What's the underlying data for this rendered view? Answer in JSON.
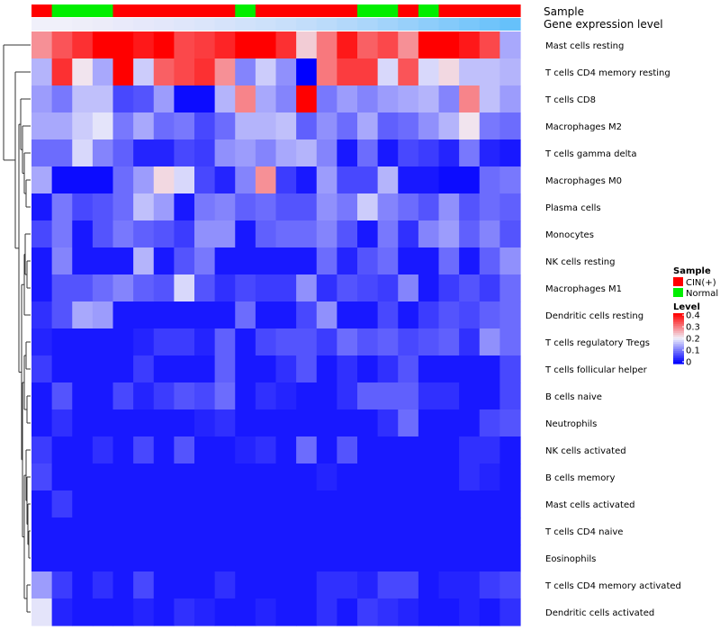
{
  "chart_data": {
    "type": "heatmap",
    "annotation_titles": [
      "Sample",
      "Gene expression level"
    ],
    "sample_groups": [
      "CIN(+)",
      "Normal",
      "Normal",
      "Normal",
      "CIN(+)",
      "CIN(+)",
      "CIN(+)",
      "CIN(+)",
      "CIN(+)",
      "CIN(+)",
      "Normal",
      "CIN(+)",
      "CIN(+)",
      "CIN(+)",
      "CIN(+)",
      "CIN(+)",
      "Normal",
      "Normal",
      "CIN(+)",
      "Normal",
      "CIN(+)",
      "CIN(+)",
      "CIN(+)",
      "CIN(+)"
    ],
    "expression_level_colors": [
      "#f0f0fa",
      "#f0f0fa",
      "#eeeef9",
      "#ececf9",
      "#e9eafa",
      "#e6e8fa",
      "#e3e7fa",
      "#dfe6fa",
      "#dbe5fa",
      "#d6e3fa",
      "#d1e2fa",
      "#cde1fa",
      "#c8dffa",
      "#c2ddfa",
      "#bbdbfa",
      "#b3d8fa",
      "#abd6fa",
      "#a2d3fa",
      "#98d0fa",
      "#8ecdfa",
      "#84cafa",
      "#7ac7fa",
      "#70c4fa",
      "#66c1fa"
    ],
    "rows": [
      "Mast cells resting",
      "T cells CD4 memory resting",
      "T cells CD8",
      "Macrophages M2",
      "T cells gamma delta",
      "Macrophages M0",
      "Plasma cells",
      "Monocytes",
      "NK cells resting",
      "Macrophages M1",
      "Dendritic cells resting",
      "T cells regulatory  Tregs",
      "T cells follicular helper",
      "B cells naive",
      "Neutrophils",
      "NK cells activated",
      "B cells memory",
      "Mast cells activated",
      "T cells CD4 naive",
      "Eosinophils",
      "T cells CD4 memory activated",
      "Dendritic cells activated"
    ],
    "values": [
      [
        0.28,
        0.33,
        0.36,
        0.4,
        0.4,
        0.38,
        0.4,
        0.34,
        0.35,
        0.37,
        0.4,
        0.4,
        0.36,
        0.23,
        0.3,
        0.38,
        0.32,
        0.34,
        0.28,
        0.4,
        0.4,
        0.38,
        0.34,
        0.14
      ],
      [
        0.15,
        0.36,
        0.21,
        0.14,
        0.4,
        0.17,
        0.32,
        0.34,
        0.36,
        0.28,
        0.11,
        0.17,
        0.12,
        0.0,
        0.3,
        0.35,
        0.35,
        0.18,
        0.33,
        0.18,
        0.22,
        0.16,
        0.16,
        0.15
      ],
      [
        0.13,
        0.1,
        0.16,
        0.16,
        0.06,
        0.07,
        0.13,
        0.01,
        0.01,
        0.15,
        0.29,
        0.14,
        0.11,
        0.4,
        0.1,
        0.13,
        0.11,
        0.13,
        0.14,
        0.15,
        0.11,
        0.29,
        0.16,
        0.13
      ],
      [
        0.14,
        0.14,
        0.17,
        0.19,
        0.1,
        0.14,
        0.09,
        0.1,
        0.06,
        0.09,
        0.15,
        0.15,
        0.16,
        0.08,
        0.12,
        0.09,
        0.14,
        0.08,
        0.09,
        0.12,
        0.15,
        0.21,
        0.1,
        0.09
      ],
      [
        0.09,
        0.09,
        0.18,
        0.11,
        0.08,
        0.03,
        0.03,
        0.06,
        0.05,
        0.12,
        0.13,
        0.11,
        0.14,
        0.15,
        0.11,
        0.02,
        0.09,
        0.02,
        0.06,
        0.05,
        0.03,
        0.1,
        0.03,
        0.02
      ],
      [
        0.14,
        0.01,
        0.01,
        0.01,
        0.09,
        0.13,
        0.22,
        0.18,
        0.06,
        0.03,
        0.11,
        0.28,
        0.05,
        0.02,
        0.13,
        0.06,
        0.06,
        0.15,
        0.02,
        0.02,
        0.01,
        0.01,
        0.09,
        0.1
      ],
      [
        0.02,
        0.1,
        0.06,
        0.07,
        0.09,
        0.16,
        0.13,
        0.02,
        0.1,
        0.11,
        0.08,
        0.09,
        0.07,
        0.07,
        0.12,
        0.1,
        0.17,
        0.11,
        0.09,
        0.07,
        0.12,
        0.07,
        0.09,
        0.08
      ],
      [
        0.06,
        0.1,
        0.02,
        0.07,
        0.1,
        0.08,
        0.07,
        0.05,
        0.12,
        0.12,
        0.02,
        0.08,
        0.09,
        0.09,
        0.11,
        0.07,
        0.02,
        0.1,
        0.04,
        0.11,
        0.13,
        0.08,
        0.11,
        0.07
      ],
      [
        0.02,
        0.11,
        0.02,
        0.02,
        0.02,
        0.15,
        0.02,
        0.07,
        0.1,
        0.02,
        0.02,
        0.02,
        0.02,
        0.02,
        0.09,
        0.03,
        0.07,
        0.09,
        0.02,
        0.02,
        0.09,
        0.02,
        0.08,
        0.12
      ],
      [
        0.02,
        0.07,
        0.07,
        0.09,
        0.11,
        0.08,
        0.07,
        0.18,
        0.07,
        0.04,
        0.06,
        0.05,
        0.05,
        0.12,
        0.04,
        0.07,
        0.06,
        0.05,
        0.11,
        0.02,
        0.05,
        0.07,
        0.05,
        0.09
      ],
      [
        0.04,
        0.07,
        0.14,
        0.13,
        0.02,
        0.02,
        0.02,
        0.02,
        0.02,
        0.02,
        0.09,
        0.02,
        0.02,
        0.06,
        0.12,
        0.02,
        0.02,
        0.06,
        0.02,
        0.05,
        0.07,
        0.06,
        0.08,
        0.09
      ],
      [
        0.03,
        0.02,
        0.02,
        0.02,
        0.02,
        0.03,
        0.05,
        0.05,
        0.03,
        0.08,
        0.02,
        0.06,
        0.07,
        0.07,
        0.05,
        0.09,
        0.07,
        0.08,
        0.06,
        0.07,
        0.08,
        0.04,
        0.12,
        0.09
      ],
      [
        0.05,
        0.02,
        0.02,
        0.02,
        0.02,
        0.05,
        0.02,
        0.02,
        0.02,
        0.08,
        0.02,
        0.02,
        0.04,
        0.07,
        0.02,
        0.04,
        0.02,
        0.04,
        0.07,
        0.02,
        0.02,
        0.02,
        0.02,
        0.06
      ],
      [
        0.02,
        0.07,
        0.02,
        0.02,
        0.06,
        0.03,
        0.05,
        0.07,
        0.06,
        0.09,
        0.02,
        0.04,
        0.03,
        0.02,
        0.02,
        0.04,
        0.08,
        0.08,
        0.08,
        0.04,
        0.04,
        0.02,
        0.02,
        0.06
      ],
      [
        0.02,
        0.04,
        0.02,
        0.02,
        0.02,
        0.02,
        0.02,
        0.02,
        0.03,
        0.04,
        0.02,
        0.02,
        0.02,
        0.02,
        0.02,
        0.02,
        0.02,
        0.04,
        0.09,
        0.02,
        0.02,
        0.02,
        0.06,
        0.07
      ],
      [
        0.05,
        0.02,
        0.02,
        0.04,
        0.02,
        0.06,
        0.02,
        0.07,
        0.02,
        0.02,
        0.03,
        0.04,
        0.02,
        0.09,
        0.02,
        0.07,
        0.02,
        0.02,
        0.02,
        0.02,
        0.02,
        0.04,
        0.04,
        0.02
      ],
      [
        0.06,
        0.02,
        0.02,
        0.02,
        0.02,
        0.02,
        0.02,
        0.02,
        0.02,
        0.02,
        0.02,
        0.02,
        0.02,
        0.02,
        0.03,
        0.02,
        0.02,
        0.02,
        0.02,
        0.02,
        0.02,
        0.04,
        0.03,
        0.02
      ],
      [
        0.02,
        0.05,
        0.02,
        0.02,
        0.02,
        0.02,
        0.02,
        0.02,
        0.02,
        0.02,
        0.02,
        0.02,
        0.02,
        0.02,
        0.02,
        0.02,
        0.02,
        0.02,
        0.02,
        0.02,
        0.02,
        0.02,
        0.02,
        0.02
      ],
      [
        0.02,
        0.02,
        0.02,
        0.02,
        0.02,
        0.02,
        0.02,
        0.02,
        0.02,
        0.02,
        0.02,
        0.02,
        0.02,
        0.02,
        0.02,
        0.02,
        0.02,
        0.02,
        0.02,
        0.02,
        0.02,
        0.02,
        0.02,
        0.02
      ],
      [
        0.02,
        0.02,
        0.02,
        0.02,
        0.02,
        0.02,
        0.02,
        0.02,
        0.02,
        0.02,
        0.02,
        0.02,
        0.02,
        0.02,
        0.02,
        0.02,
        0.02,
        0.02,
        0.02,
        0.02,
        0.02,
        0.02,
        0.02,
        0.02
      ],
      [
        0.13,
        0.05,
        0.02,
        0.04,
        0.02,
        0.06,
        0.02,
        0.02,
        0.02,
        0.04,
        0.02,
        0.02,
        0.02,
        0.02,
        0.04,
        0.04,
        0.03,
        0.06,
        0.06,
        0.02,
        0.03,
        0.03,
        0.05,
        0.06
      ],
      [
        0.19,
        0.03,
        0.02,
        0.02,
        0.02,
        0.03,
        0.02,
        0.04,
        0.03,
        0.02,
        0.02,
        0.03,
        0.02,
        0.02,
        0.04,
        0.02,
        0.05,
        0.04,
        0.03,
        0.02,
        0.02,
        0.03,
        0.02,
        0.04
      ]
    ],
    "legend": {
      "sample_title": "Sample",
      "sample_entries": [
        {
          "label": "CIN(+)",
          "color": "#ff0000"
        },
        {
          "label": "Normal",
          "color": "#00ee00"
        }
      ],
      "level_title": "Level",
      "level_ticks": [
        "0.4",
        "0.3",
        "0.2",
        "0.1",
        "0"
      ],
      "color_scale": {
        "low": "#0000ff",
        "mid": "#f0f0fa",
        "high": "#ff0000",
        "mid_value": 0.2,
        "max_value": 0.4
      }
    },
    "dendrogram": true,
    "value_range": [
      0,
      0.4
    ]
  }
}
